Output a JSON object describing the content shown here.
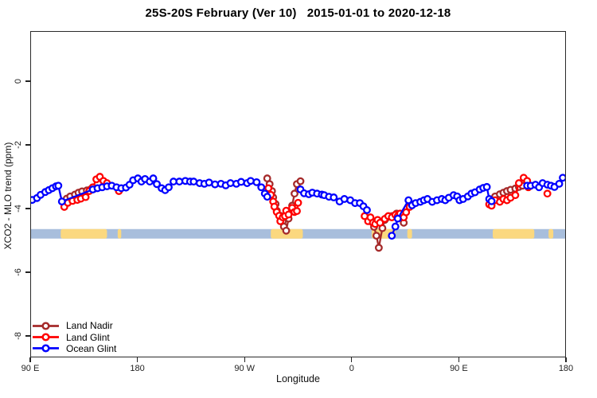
{
  "chart_data": {
    "type": "line",
    "title": "25S-20S February (Ver 10)   2015-01-01 to 2020-12-18",
    "xlabel": "Longitude",
    "ylabel": "XCO2 - MLO trend (ppm)",
    "x_axis": {
      "range_deg": [
        0,
        450
      ],
      "note": "longitude axis wraps eastward starting at 90E",
      "ticks": [
        {
          "deg": 0,
          "label": "90 E"
        },
        {
          "deg": 90,
          "label": "180"
        },
        {
          "deg": 180,
          "label": "90 W"
        },
        {
          "deg": 270,
          "label": "0"
        },
        {
          "deg": 360,
          "label": "90 E"
        },
        {
          "deg": 450,
          "label": "180"
        }
      ]
    },
    "y_axis": {
      "ticks": [
        0,
        -2,
        -4,
        -6,
        -8
      ],
      "range": [
        -8.7,
        1.6
      ],
      "unit": "ppm"
    },
    "map_band": {
      "ocean_color": "#A8BEDC",
      "land_color": "#FBD87F",
      "y_top_ppm": -4.65,
      "y_bottom_ppm": -4.95,
      "land_segments_deg": [
        [
          25,
          64
        ],
        [
          73,
          76
        ],
        [
          202,
          229
        ],
        [
          287,
          307
        ],
        [
          317,
          321
        ],
        [
          389,
          424
        ],
        [
          436,
          440
        ]
      ]
    },
    "series": [
      {
        "name": "Land Nadir",
        "color": "#A52A2A",
        "marker": "open-circle",
        "segments": [
          [
            [
              30,
              -3.69
            ],
            [
              33,
              -3.62
            ],
            [
              37,
              -3.56
            ],
            [
              40,
              -3.5
            ],
            [
              43,
              -3.46
            ],
            [
              47,
              -3.43
            ],
            [
              50,
              -3.4
            ],
            [
              53,
              -3.38
            ]
          ],
          [
            [
              199,
              -3.05
            ],
            [
              201,
              -3.23
            ],
            [
              203,
              -3.45
            ],
            [
              204,
              -3.65
            ],
            [
              206,
              -3.86
            ],
            [
              207,
              -4.07
            ],
            [
              210,
              -4.23
            ],
            [
              212,
              -4.41
            ],
            [
              213,
              -4.57
            ],
            [
              215,
              -4.7
            ],
            [
              217,
              -4.32
            ],
            [
              220,
              -3.91
            ],
            [
              222,
              -3.53
            ],
            [
              224,
              -3.23
            ],
            [
              227,
              -3.14
            ]
          ],
          [
            [
              289,
              -4.58
            ],
            [
              291,
              -4.86
            ],
            [
              293,
              -5.24
            ],
            [
              296,
              -4.62
            ],
            [
              298,
              -4.36
            ],
            [
              300,
              -4.28
            ],
            [
              304,
              -4.24
            ],
            [
              308,
              -4.16
            ],
            [
              311,
              -4.3
            ],
            [
              314,
              -4.45
            ]
          ],
          [
            [
              391,
              -3.62
            ],
            [
              395,
              -3.55
            ],
            [
              398,
              -3.5
            ],
            [
              401,
              -3.45
            ],
            [
              404,
              -3.41
            ],
            [
              408,
              -3.37
            ],
            [
              411,
              -3.32
            ],
            [
              414,
              -3.28
            ]
          ]
        ]
      },
      {
        "name": "Land Glint",
        "color": "#FF0000",
        "marker": "open-circle",
        "segments": [
          [
            [
              28,
              -3.95
            ],
            [
              31,
              -3.82
            ],
            [
              35,
              -3.76
            ],
            [
              39,
              -3.73
            ],
            [
              42,
              -3.69
            ],
            [
              46,
              -3.64
            ],
            [
              49,
              -3.45
            ],
            [
              52,
              -3.33
            ],
            [
              55,
              -3.08
            ],
            [
              58,
              -3.0
            ],
            [
              61,
              -3.13
            ],
            [
              64,
              -3.2
            ]
          ],
          [
            [
              74,
              -3.45
            ]
          ],
          [
            [
              200,
              -3.36
            ],
            [
              202,
              -3.57
            ],
            [
              204,
              -3.78
            ],
            [
              205,
              -3.94
            ],
            [
              207,
              -4.11
            ],
            [
              209,
              -4.23
            ],
            [
              210,
              -4.4
            ],
            [
              212,
              -4.28
            ],
            [
              214,
              -4.24
            ],
            [
              215,
              -4.07
            ],
            [
              217,
              -4.19
            ],
            [
              220,
              -3.98
            ],
            [
              222,
              -4.11
            ],
            [
              224,
              -4.08
            ],
            [
              225,
              -3.82
            ]
          ],
          [
            [
              281,
              -4.24
            ],
            [
              284,
              -4.4
            ],
            [
              286,
              -4.28
            ],
            [
              288,
              -4.45
            ],
            [
              290,
              -4.49
            ],
            [
              292,
              -4.36
            ],
            [
              294,
              -4.45
            ],
            [
              298,
              -4.33
            ],
            [
              301,
              -4.24
            ],
            [
              304,
              -4.28
            ],
            [
              307,
              -4.2
            ],
            [
              309,
              -4.24
            ],
            [
              311,
              -4.16
            ],
            [
              314,
              -4.28
            ],
            [
              316,
              -4.12
            ],
            [
              319,
              -3.95
            ],
            [
              321,
              -3.87
            ]
          ],
          [
            [
              386,
              -3.87
            ],
            [
              388,
              -3.91
            ],
            [
              391,
              -3.74
            ],
            [
              395,
              -3.79
            ],
            [
              398,
              -3.7
            ],
            [
              401,
              -3.74
            ],
            [
              404,
              -3.66
            ],
            [
              408,
              -3.58
            ],
            [
              411,
              -3.2
            ],
            [
              415,
              -3.03
            ],
            [
              418,
              -3.13
            ],
            [
              419,
              -3.33
            ]
          ],
          [
            [
              435,
              -3.53
            ]
          ]
        ]
      },
      {
        "name": "Ocean Glint",
        "color": "#0000FF",
        "marker": "open-circle",
        "segments": [
          [
            [
              1,
              -3.73
            ],
            [
              5,
              -3.67
            ],
            [
              8,
              -3.57
            ],
            [
              12,
              -3.48
            ],
            [
              15,
              -3.42
            ],
            [
              18,
              -3.36
            ],
            [
              21,
              -3.3
            ],
            [
              23,
              -3.28
            ],
            [
              26,
              -3.78
            ],
            [
              52,
              -3.4
            ],
            [
              56,
              -3.36
            ],
            [
              60,
              -3.33
            ],
            [
              64,
              -3.3
            ],
            [
              68,
              -3.28
            ],
            [
              72,
              -3.33
            ],
            [
              76,
              -3.36
            ],
            [
              80,
              -3.34
            ],
            [
              83,
              -3.25
            ],
            [
              86,
              -3.11
            ],
            [
              90,
              -3.05
            ],
            [
              93,
              -3.15
            ],
            [
              96,
              -3.07
            ],
            [
              100,
              -3.15
            ],
            [
              103,
              -3.05
            ],
            [
              106,
              -3.23
            ],
            [
              110,
              -3.36
            ],
            [
              113,
              -3.42
            ],
            [
              116,
              -3.33
            ],
            [
              120,
              -3.15
            ],
            [
              125,
              -3.15
            ],
            [
              130,
              -3.13
            ],
            [
              134,
              -3.15
            ],
            [
              137,
              -3.15
            ],
            [
              142,
              -3.2
            ],
            [
              146,
              -3.22
            ],
            [
              150,
              -3.18
            ],
            [
              155,
              -3.24
            ],
            [
              160,
              -3.22
            ],
            [
              164,
              -3.27
            ],
            [
              168,
              -3.2
            ],
            [
              173,
              -3.22
            ],
            [
              177,
              -3.16
            ],
            [
              182,
              -3.2
            ],
            [
              185,
              -3.13
            ],
            [
              190,
              -3.17
            ],
            [
              194,
              -3.33
            ],
            [
              197,
              -3.53
            ],
            [
              199,
              -3.63
            ]
          ],
          [
            [
              227,
              -3.4
            ],
            [
              230,
              -3.52
            ],
            [
              234,
              -3.55
            ],
            [
              237,
              -3.5
            ],
            [
              241,
              -3.53
            ],
            [
              245,
              -3.56
            ],
            [
              247,
              -3.58
            ],
            [
              251,
              -3.63
            ],
            [
              255,
              -3.65
            ],
            [
              260,
              -3.78
            ],
            [
              264,
              -3.7
            ],
            [
              269,
              -3.74
            ],
            [
              273,
              -3.83
            ],
            [
              277,
              -3.83
            ],
            [
              280,
              -3.93
            ],
            [
              283,
              -4.05
            ]
          ],
          [
            [
              304,
              -4.86
            ],
            [
              307,
              -4.57
            ],
            [
              309,
              -4.32
            ],
            [
              318,
              -3.74
            ],
            [
              321,
              -3.9
            ],
            [
              324,
              -3.83
            ],
            [
              328,
              -3.79
            ],
            [
              331,
              -3.74
            ],
            [
              334,
              -3.7
            ],
            [
              338,
              -3.79
            ],
            [
              342,
              -3.74
            ],
            [
              346,
              -3.7
            ],
            [
              349,
              -3.74
            ],
            [
              352,
              -3.66
            ],
            [
              356,
              -3.58
            ],
            [
              359,
              -3.62
            ],
            [
              361,
              -3.74
            ],
            [
              364,
              -3.7
            ],
            [
              368,
              -3.62
            ],
            [
              371,
              -3.53
            ],
            [
              374,
              -3.49
            ],
            [
              378,
              -3.4
            ],
            [
              381,
              -3.35
            ],
            [
              384,
              -3.32
            ],
            [
              386,
              -3.7
            ],
            [
              388,
              -3.77
            ]
          ],
          [
            [
              418,
              -3.28
            ],
            [
              421,
              -3.28
            ],
            [
              425,
              -3.25
            ],
            [
              428,
              -3.33
            ],
            [
              431,
              -3.2
            ],
            [
              435,
              -3.25
            ],
            [
              438,
              -3.28
            ],
            [
              441,
              -3.32
            ],
            [
              445,
              -3.22
            ],
            [
              448,
              -3.03
            ]
          ]
        ]
      }
    ],
    "legend": {
      "position": "bottom-left",
      "items": [
        "Land Nadir",
        "Land Glint",
        "Ocean Glint"
      ]
    }
  }
}
